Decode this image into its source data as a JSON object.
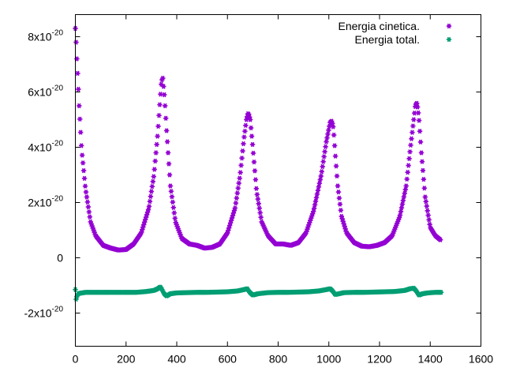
{
  "chart_data": {
    "type": "scatter",
    "xlim": [
      0,
      1600
    ],
    "ylim": [
      -3.2e-20,
      8.8e-20
    ],
    "x_ticks": [
      {
        "value": 0,
        "label": "0"
      },
      {
        "value": 200,
        "label": "200"
      },
      {
        "value": 400,
        "label": "400"
      },
      {
        "value": 600,
        "label": "600"
      },
      {
        "value": 800,
        "label": "800"
      },
      {
        "value": 1000,
        "label": "1000"
      },
      {
        "value": 1200,
        "label": "1200"
      },
      {
        "value": 1400,
        "label": "1400"
      },
      {
        "value": 1600,
        "label": "1600"
      }
    ],
    "y_ticks": [
      {
        "value": -2e-20,
        "label": "-2x10",
        "exp": "-20"
      },
      {
        "value": 0,
        "label": "0",
        "exp": ""
      },
      {
        "value": 2e-20,
        "label": "2x10",
        "exp": "-20"
      },
      {
        "value": 4e-20,
        "label": "4x10",
        "exp": "-20"
      },
      {
        "value": 6e-20,
        "label": "6x10",
        "exp": "-20"
      },
      {
        "value": 8e-20,
        "label": "8x10",
        "exp": "-20"
      }
    ],
    "grid": false,
    "legend_position": "top-right",
    "series": [
      {
        "name": "Energia cinetica.",
        "color": "#9400d3",
        "marker": "star",
        "x": [
          0,
          3,
          6,
          10,
          15,
          25,
          40,
          60,
          80,
          110,
          140,
          170,
          200,
          230,
          260,
          290,
          310,
          325,
          335,
          340,
          345,
          352,
          360,
          375,
          395,
          420,
          450,
          480,
          510,
          540,
          570,
          600,
          630,
          650,
          665,
          675,
          682,
          690,
          700,
          715,
          735,
          760,
          790,
          820,
          850,
          880,
          910,
          940,
          970,
          990,
          1005,
          1012,
          1018,
          1025,
          1035,
          1050,
          1070,
          1100,
          1130,
          1160,
          1190,
          1220,
          1250,
          1280,
          1305,
          1322,
          1335,
          1342,
          1348,
          1355,
          1365,
          1380,
          1400,
          1420,
          1440
        ],
        "y": [
          8.3e-20,
          7.8e-20,
          7.2e-20,
          6.5e-20,
          5.5e-20,
          3.9e-20,
          2.5e-20,
          1.3e-20,
          8e-21,
          4.5e-21,
          3.5e-21,
          2.8e-21,
          3e-21,
          5e-21,
          9e-21,
          1.8e-20,
          3e-20,
          4.5e-20,
          5.8e-20,
          6.4e-20,
          6.5e-20,
          5.8e-20,
          4.6e-20,
          2.6e-20,
          1.3e-20,
          7e-21,
          5e-21,
          4.5e-21,
          3.5e-21,
          3.8e-21,
          5e-21,
          9e-21,
          1.8e-20,
          3e-20,
          4.3e-20,
          5e-20,
          5.25e-20,
          5e-20,
          4e-20,
          2.4e-20,
          1.3e-20,
          8e-21,
          5e-21,
          5e-21,
          4.5e-21,
          5.5e-21,
          9e-21,
          1.7e-20,
          3e-20,
          4.2e-20,
          4.9e-20,
          4.95e-20,
          4.7e-20,
          3.8e-20,
          2.6e-20,
          1.5e-20,
          9e-21,
          5.5e-21,
          4.2e-21,
          4e-21,
          4.5e-21,
          5.5e-21,
          8e-21,
          1.5e-20,
          2.6e-20,
          4e-20,
          5e-20,
          5.55e-20,
          5.6e-20,
          5.1e-20,
          3.8e-20,
          2.2e-20,
          1.1e-20,
          8e-21,
          6.5e-21
        ]
      },
      {
        "name": "Energia total.",
        "color": "#009e73",
        "marker": "star",
        "x": [
          0,
          3,
          6,
          12,
          20,
          40,
          80,
          120,
          160,
          200,
          240,
          280,
          310,
          325,
          335,
          342,
          350,
          360,
          375,
          400,
          440,
          480,
          520,
          560,
          600,
          640,
          665,
          678,
          688,
          700,
          720,
          760,
          800,
          840,
          880,
          920,
          960,
          990,
          1005,
          1015,
          1025,
          1040,
          1060,
          1100,
          1140,
          1180,
          1220,
          1260,
          1300,
          1320,
          1335,
          1345,
          1355,
          1370,
          1390,
          1420,
          1445
        ],
        "y": [
          -1.15e-20,
          -1.5e-20,
          -1.4e-20,
          -1.3e-20,
          -1.28e-20,
          -1.25e-20,
          -1.25e-20,
          -1.25e-20,
          -1.25e-20,
          -1.25e-20,
          -1.25e-20,
          -1.22e-20,
          -1.18e-20,
          -1.12e-20,
          -1.05e-20,
          -1.15e-20,
          -1.3e-20,
          -1.38e-20,
          -1.3e-20,
          -1.27e-20,
          -1.26e-20,
          -1.25e-20,
          -1.25e-20,
          -1.24e-20,
          -1.23e-20,
          -1.2e-20,
          -1.15e-20,
          -1.12e-20,
          -1.25e-20,
          -1.35e-20,
          -1.3e-20,
          -1.26e-20,
          -1.25e-20,
          -1.25e-20,
          -1.24e-20,
          -1.23e-20,
          -1.2e-20,
          -1.15e-20,
          -1.12e-20,
          -1.2e-20,
          -1.33e-20,
          -1.3e-20,
          -1.26e-20,
          -1.25e-20,
          -1.25e-20,
          -1.24e-20,
          -1.23e-20,
          -1.22e-20,
          -1.18e-20,
          -1.12e-20,
          -1.1e-20,
          -1.2e-20,
          -1.35e-20,
          -1.3e-20,
          -1.27e-20,
          -1.25e-20,
          -1.25e-20
        ]
      }
    ]
  }
}
